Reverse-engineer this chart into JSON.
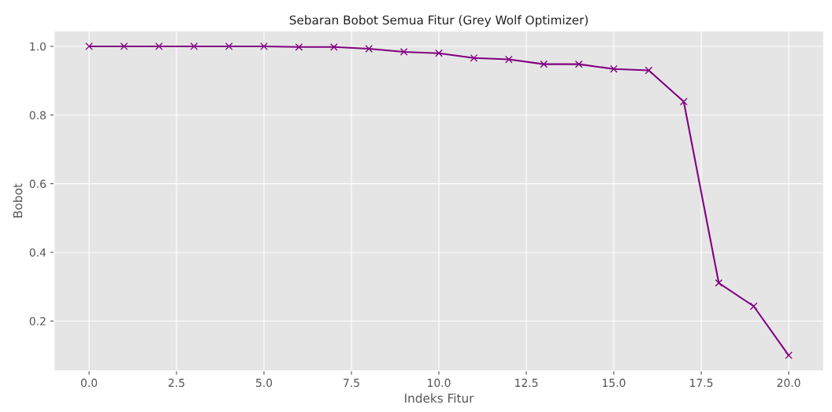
{
  "chart_data": {
    "type": "line",
    "title": "Sebaran Bobot Semua Fitur (Grey Wolf Optimizer)",
    "xlabel": "Indeks Fitur",
    "ylabel": "Bobot",
    "x": [
      0,
      1,
      2,
      3,
      4,
      5,
      6,
      7,
      8,
      9,
      10,
      11,
      12,
      13,
      14,
      15,
      16,
      17,
      18,
      19,
      20
    ],
    "series": [
      {
        "color": "#800080",
        "values": [
          1.0,
          1.0,
          1.0,
          1.0,
          1.0,
          1.0,
          0.998,
          0.998,
          0.993,
          0.984,
          0.98,
          0.966,
          0.962,
          0.948,
          0.948,
          0.934,
          0.93,
          0.839,
          0.311,
          0.243,
          0.1
        ]
      }
    ],
    "xlim": [
      -1,
      21
    ],
    "xticks": [
      {
        "value": 0,
        "label": "0.0"
      },
      {
        "value": 2.5,
        "label": "2.5"
      },
      {
        "value": 5,
        "label": "5.0"
      },
      {
        "value": 7.5,
        "label": "7.5"
      },
      {
        "value": 10,
        "label": "10.0"
      },
      {
        "value": 12.5,
        "label": "12.5"
      },
      {
        "value": 15,
        "label": "15.0"
      },
      {
        "value": 17.5,
        "label": "17.5"
      },
      {
        "value": 20,
        "label": "20.0"
      }
    ],
    "ylim": [
      0.055,
      1.045
    ],
    "yticks": [
      0.2,
      0.4,
      0.6,
      0.8,
      {
        "value": 1.0,
        "label": "1.0"
      }
    ],
    "grid": true,
    "marker": "cross",
    "line_style": "solid"
  }
}
